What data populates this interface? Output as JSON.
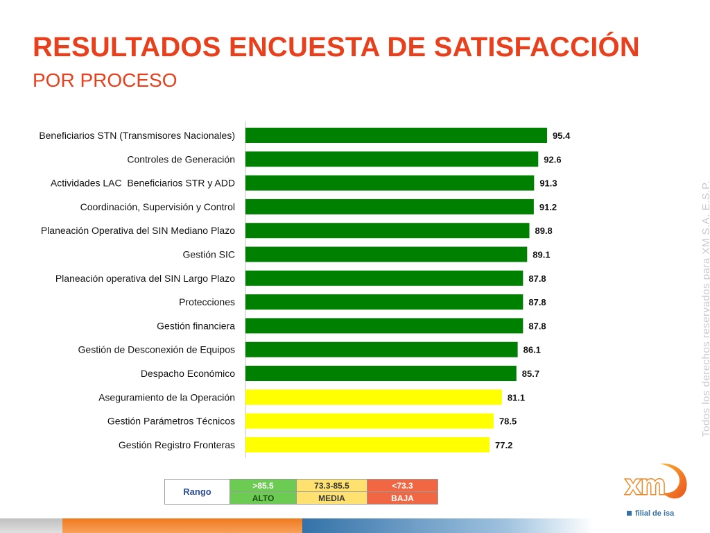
{
  "title": "RESULTADOS ENCUESTA DE SATISFACCIÓN",
  "subtitle": "POR PROCESO",
  "colors": {
    "alto": "#008000",
    "media": "#ffff00",
    "baja": "#f16744",
    "title": "#e8401c"
  },
  "chart_data": {
    "type": "bar",
    "orientation": "horizontal",
    "categories": [
      "Beneficiarios STN (Transmisores Nacionales)",
      "Controles de Generación",
      "Actividades LAC  Beneficiarios STR y ADD",
      "Coordinación, Supervisión y Control",
      "Planeación Operativa del SIN Mediano Plazo",
      "Gestión SIC",
      "Planeación operativa del SIN Largo Plazo",
      "Protecciones",
      "Gestión financiera",
      "Gestión de Desconexión de Equipos",
      "Despacho Económico",
      "Aseguramiento de la Operación",
      "Gestión Parámetros Técnicos",
      "Gestión Registro Fronteras"
    ],
    "values": [
      95.4,
      92.6,
      91.3,
      91.2,
      89.8,
      89.1,
      87.8,
      87.8,
      87.8,
      86.1,
      85.7,
      81.1,
      78.5,
      77.2
    ],
    "value_labels": [
      "95.4",
      "92.6",
      "91.3",
      "91.2",
      "89.8",
      "89.1",
      "87.8",
      "87.8",
      "87.8",
      "86.1",
      "85.7",
      "81.1",
      "78.5",
      "77.2"
    ],
    "bar_levels": [
      "alto",
      "alto",
      "alto",
      "alto",
      "alto",
      "alto",
      "alto",
      "alto",
      "alto",
      "alto",
      "alto",
      "media",
      "media",
      "media"
    ],
    "xlim": [
      0,
      100
    ],
    "grid": false,
    "legend": "bottom"
  },
  "legend": {
    "label": "Rango",
    "alto": {
      "range": ">85.5",
      "name": "ALTO"
    },
    "media": {
      "range": "73.3-85.5",
      "name": "MEDIA"
    },
    "baja": {
      "range": "<73.3",
      "name": "BAJA"
    }
  },
  "side_note": "Todos los derechos reservados para XM S.A. E.S.P.",
  "logo": {
    "brand": "xm",
    "tagline": "filial de isa"
  }
}
